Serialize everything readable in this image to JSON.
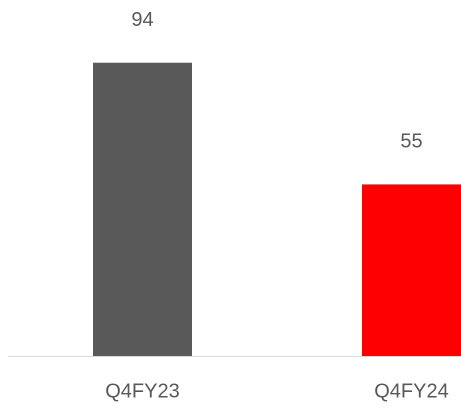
{
  "chart_data": {
    "type": "bar",
    "categories": [
      "Q4FY23",
      "Q4FY24"
    ],
    "values": [
      94,
      55
    ],
    "colors": [
      "#595959",
      "#ff0000"
    ]
  }
}
